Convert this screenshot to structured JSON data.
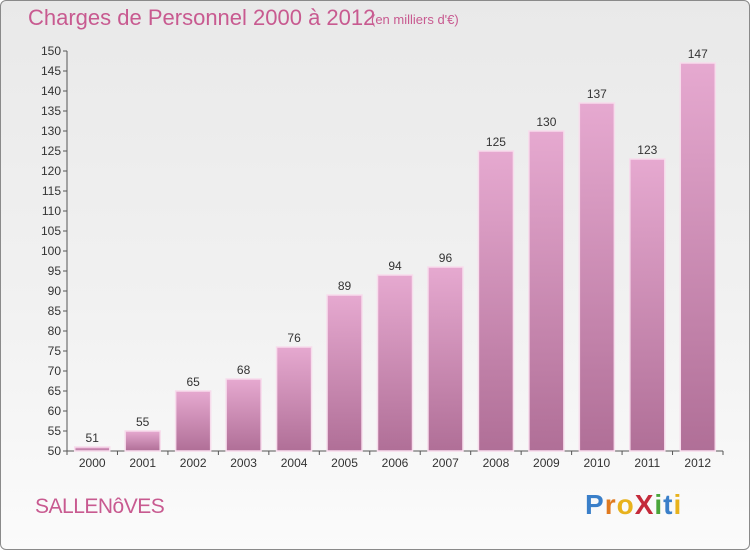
{
  "chart_data": {
    "type": "bar",
    "title": "Charges de Personnel 2000 à 2012",
    "subtitle": "(en milliers d'€)",
    "categories": [
      "2000",
      "2001",
      "2002",
      "2003",
      "2004",
      "2005",
      "2006",
      "2007",
      "2008",
      "2009",
      "2010",
      "2011",
      "2012"
    ],
    "values": [
      51,
      55,
      65,
      68,
      76,
      89,
      94,
      96,
      125,
      130,
      137,
      123,
      147
    ],
    "ylim": [
      50,
      150
    ],
    "yticks": [
      50,
      55,
      60,
      65,
      70,
      75,
      80,
      85,
      90,
      95,
      100,
      105,
      110,
      115,
      120,
      125,
      130,
      135,
      140,
      145,
      150
    ],
    "xlabel": "",
    "ylabel": "",
    "grid": false,
    "colors": {
      "bar_top": "#e6a9d0",
      "bar_bottom": "#b06f97",
      "bar_edge": "#f7dcec",
      "text_accent": "#c85a90"
    }
  },
  "footer": {
    "commune": "SALLENôVES",
    "logo_letters": [
      {
        "ch": "P",
        "color": "#3a7fc9"
      },
      {
        "ch": "r",
        "color": "#e07a1f"
      },
      {
        "ch": "o",
        "color": "#e8b21c"
      },
      {
        "ch": "X",
        "color": "#c42a3a"
      },
      {
        "ch": "i",
        "color": "#4aa53a"
      },
      {
        "ch": "t",
        "color": "#3a7fc9"
      },
      {
        "ch": "i",
        "color": "#e8b21c"
      }
    ]
  }
}
